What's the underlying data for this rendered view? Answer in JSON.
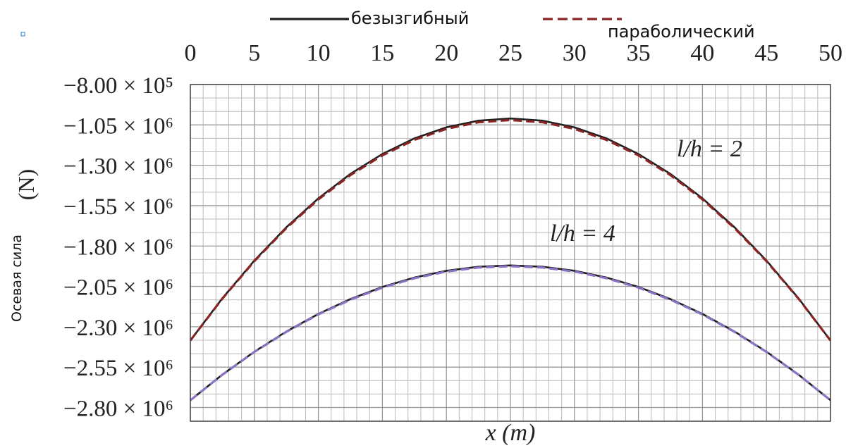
{
  "chart_data": {
    "type": "line",
    "x_label": "x (m)",
    "y_label": "Осевая сила",
    "y_unit": "(N)",
    "xlim": [
      0,
      50
    ],
    "xticks": [
      0,
      5,
      10,
      15,
      20,
      25,
      30,
      35,
      40,
      45,
      50
    ],
    "ylim": [
      -2885000,
      -800000
    ],
    "yticks": [
      {
        "value": -800000,
        "label": "−8.00 × 10⁵"
      },
      {
        "value": -1050000,
        "label": "−1.05 × 10⁶"
      },
      {
        "value": -1300000,
        "label": "−1.30 × 10⁶"
      },
      {
        "value": -1550000,
        "label": "−1.55 × 10⁶"
      },
      {
        "value": -1800000,
        "label": "−1.80 × 10⁶"
      },
      {
        "value": -2050000,
        "label": "−2.05 × 10⁶"
      },
      {
        "value": -2300000,
        "label": "−2.30 × 10⁶"
      },
      {
        "value": -2550000,
        "label": "−2.55 × 10⁶"
      },
      {
        "value": -2800000,
        "label": "−2.80 × 10⁶"
      }
    ],
    "grid": true,
    "annotations": [
      "l/h = 2",
      "l/h = 4"
    ],
    "x": [
      0,
      2.5,
      5,
      7.5,
      10,
      12.5,
      15,
      17.5,
      20,
      22.5,
      25,
      27.5,
      30,
      32.5,
      35,
      37.5,
      40,
      42.5,
      45,
      47.5,
      50
    ],
    "series": [
      {
        "name": "безызгибный",
        "dashed": false,
        "curve_colors": [
          "#1f1f1f",
          "#1f1f1f"
        ],
        "curves": [
          [
            -2385000,
            -2123750,
            -1890000,
            -1683750,
            -1505000,
            -1353750,
            -1230000,
            -1133750,
            -1065000,
            -1023750,
            -1010000,
            -1023750,
            -1065000,
            -1133750,
            -1230000,
            -1353750,
            -1505000,
            -1683750,
            -1890000,
            -2123750,
            -2385000
          ],
          [
            -2755000,
            -2596350,
            -2454400,
            -2329150,
            -2220600,
            -2128750,
            -2053600,
            -1995150,
            -1953400,
            -1928350,
            -1920000,
            -1928350,
            -1953400,
            -1995150,
            -2053600,
            -2128750,
            -2220600,
            -2329150,
            -2454400,
            -2596350,
            -2755000
          ]
        ]
      },
      {
        "name": "параболический",
        "dashed": true,
        "curve_colors": [
          "#8b2525",
          "#8a72c4"
        ],
        "curves": [
          [
            -2385000,
            -2125650,
            -1893600,
            -1688850,
            -1511400,
            -1361250,
            -1238400,
            -1142850,
            -1074600,
            -1033650,
            -1020000,
            -1033650,
            -1074600,
            -1142850,
            -1238400,
            -1361250,
            -1511400,
            -1688850,
            -1893600,
            -2125650,
            -2385000
          ],
          [
            -2755000,
            -2597300,
            -2456200,
            -2331700,
            -2223800,
            -2132500,
            -2057800,
            -1999700,
            -1958200,
            -1933300,
            -1925000,
            -1933300,
            -1958200,
            -1999700,
            -2057800,
            -2132500,
            -2223800,
            -2331700,
            -2456200,
            -2597300,
            -2755000
          ]
        ]
      }
    ]
  }
}
